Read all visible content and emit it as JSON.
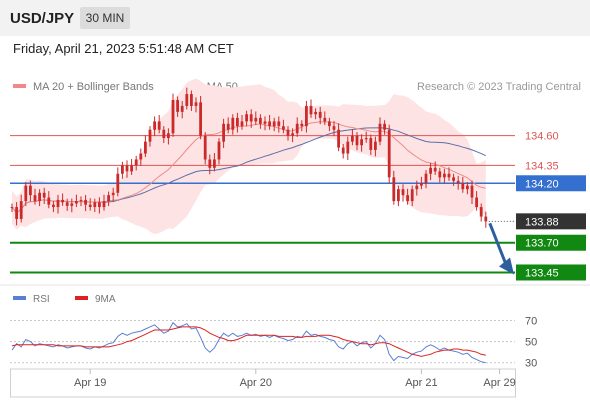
{
  "header": {
    "symbol": "USD/JPY",
    "timeframe": "30 MIN"
  },
  "date_line": "Friday, April 21, 2023 5:51:48 AM CET",
  "colors": {
    "header_bg": "#f2f2f2",
    "candle": "#cc2a2a",
    "bollinger_fill": "#fde3e3",
    "ma20": "#f08a8a",
    "ma50": "#5b6fa8",
    "resistance": "#e05555",
    "pivot": "#3370d0",
    "support": "#118811",
    "price_tag": "#333333",
    "rsi": "#5a7fd6",
    "rsi_ma": "#dd2222",
    "arrow": "#2d5e9e"
  },
  "chart_data": [
    {
      "type": "candlestick",
      "legend": [
        {
          "name": "MA 20 + Bollinger Bands",
          "color": "#f08a8a"
        },
        {
          "name": "MA 50",
          "color": "#5b6fa8"
        }
      ],
      "watermark": "Research © 2023 Trading Central",
      "ylim": [
        133.37,
        134.9
      ],
      "levels": [
        {
          "value": 134.6,
          "label": "134.60",
          "kind": "resistance"
        },
        {
          "value": 134.35,
          "label": "134.35",
          "kind": "resistance"
        },
        {
          "value": 134.2,
          "label": "134.20",
          "kind": "pivot"
        },
        {
          "value": 133.7,
          "label": "133.70",
          "kind": "support"
        },
        {
          "value": 133.45,
          "label": "133.45",
          "kind": "support"
        }
      ],
      "last_price": {
        "value": 133.88,
        "label": "133.88"
      },
      "forecast_arrow": {
        "from_value": 133.88,
        "to_value": 133.45
      },
      "closes": [
        134.0,
        133.9,
        134.05,
        134.18,
        134.1,
        134.05,
        134.12,
        134.08,
        134.02,
        134.0,
        134.06,
        134.04,
        134.01,
        134.03,
        134.05,
        134.06,
        134.02,
        134.0,
        134.04,
        134.0,
        134.05,
        134.1,
        134.12,
        134.28,
        134.35,
        134.3,
        134.35,
        134.4,
        134.45,
        134.55,
        134.65,
        134.72,
        134.65,
        134.58,
        134.62,
        134.9,
        134.8,
        134.85,
        134.95,
        134.85,
        134.88,
        134.6,
        134.4,
        134.33,
        134.4,
        134.55,
        134.7,
        134.65,
        134.75,
        134.68,
        134.72,
        134.78,
        134.72,
        134.75,
        134.7,
        134.72,
        134.68,
        134.72,
        134.68,
        134.65,
        134.6,
        134.62,
        134.7,
        134.68,
        134.85,
        134.78,
        134.8,
        134.75,
        134.72,
        134.68,
        134.65,
        134.5,
        134.45,
        134.55,
        134.6,
        134.52,
        134.57,
        134.58,
        134.48,
        134.55,
        134.7,
        134.65,
        134.25,
        134.05,
        134.15,
        134.1,
        134.05,
        134.15,
        134.18,
        134.2,
        134.28,
        134.33,
        134.3,
        134.25,
        134.28,
        134.25,
        134.22,
        134.2,
        134.15,
        134.18,
        134.08,
        134.0,
        133.92,
        133.88
      ],
      "x_ticks": [
        {
          "label": "Apr 19",
          "index": 17
        },
        {
          "label": "Apr 20",
          "index": 53
        },
        {
          "label": "Apr 21",
          "index": 89
        },
        {
          "label": "Apr 29",
          "index": 106
        }
      ]
    },
    {
      "type": "line",
      "legend": [
        {
          "name": "RSI",
          "color": "#5a7fd6"
        },
        {
          "name": "9MA",
          "color": "#dd2222"
        }
      ],
      "ylim": [
        25,
        80
      ],
      "y_ticks": [
        70,
        50,
        30
      ],
      "series": [
        {
          "name": "RSI",
          "values": [
            42,
            48,
            45,
            52,
            50,
            46,
            48,
            47,
            46,
            45,
            47,
            46,
            44,
            45,
            46,
            46,
            44,
            43,
            45,
            44,
            46,
            48,
            49,
            55,
            58,
            56,
            58,
            59,
            60,
            62,
            64,
            66,
            62,
            58,
            60,
            68,
            64,
            65,
            67,
            62,
            63,
            54,
            44,
            40,
            44,
            52,
            58,
            55,
            58,
            55,
            56,
            58,
            56,
            57,
            55,
            56,
            54,
            56,
            54,
            53,
            51,
            52,
            55,
            54,
            60,
            56,
            57,
            55,
            54,
            52,
            51,
            45,
            43,
            48,
            50,
            46,
            49,
            50,
            44,
            48,
            56,
            52,
            38,
            32,
            36,
            35,
            34,
            38,
            40,
            41,
            45,
            47,
            45,
            42,
            44,
            42,
            41,
            40,
            38,
            39,
            35,
            33,
            31,
            30
          ]
        },
        {
          "name": "9MA",
          "values": [
            46,
            47,
            47,
            47,
            47,
            47,
            47,
            47,
            47,
            47,
            46,
            46,
            46,
            46,
            46,
            46,
            45,
            45,
            45,
            45,
            45,
            45,
            46,
            47,
            48,
            50,
            51,
            53,
            55,
            57,
            59,
            61,
            61,
            61,
            61,
            62,
            63,
            64,
            64,
            64,
            64,
            63,
            61,
            58,
            56,
            54,
            53,
            51,
            51,
            52,
            54,
            56,
            56,
            56,
            56,
            56,
            56,
            56,
            55,
            55,
            55,
            55,
            54,
            54,
            55,
            55,
            55,
            56,
            56,
            56,
            55,
            54,
            52,
            51,
            50,
            49,
            48,
            48,
            47,
            48,
            49,
            49,
            48,
            46,
            44,
            42,
            40,
            38,
            37,
            36,
            37,
            38,
            40,
            41,
            42,
            42,
            43,
            43,
            42,
            42,
            41,
            40,
            38,
            37
          ]
        }
      ]
    }
  ]
}
